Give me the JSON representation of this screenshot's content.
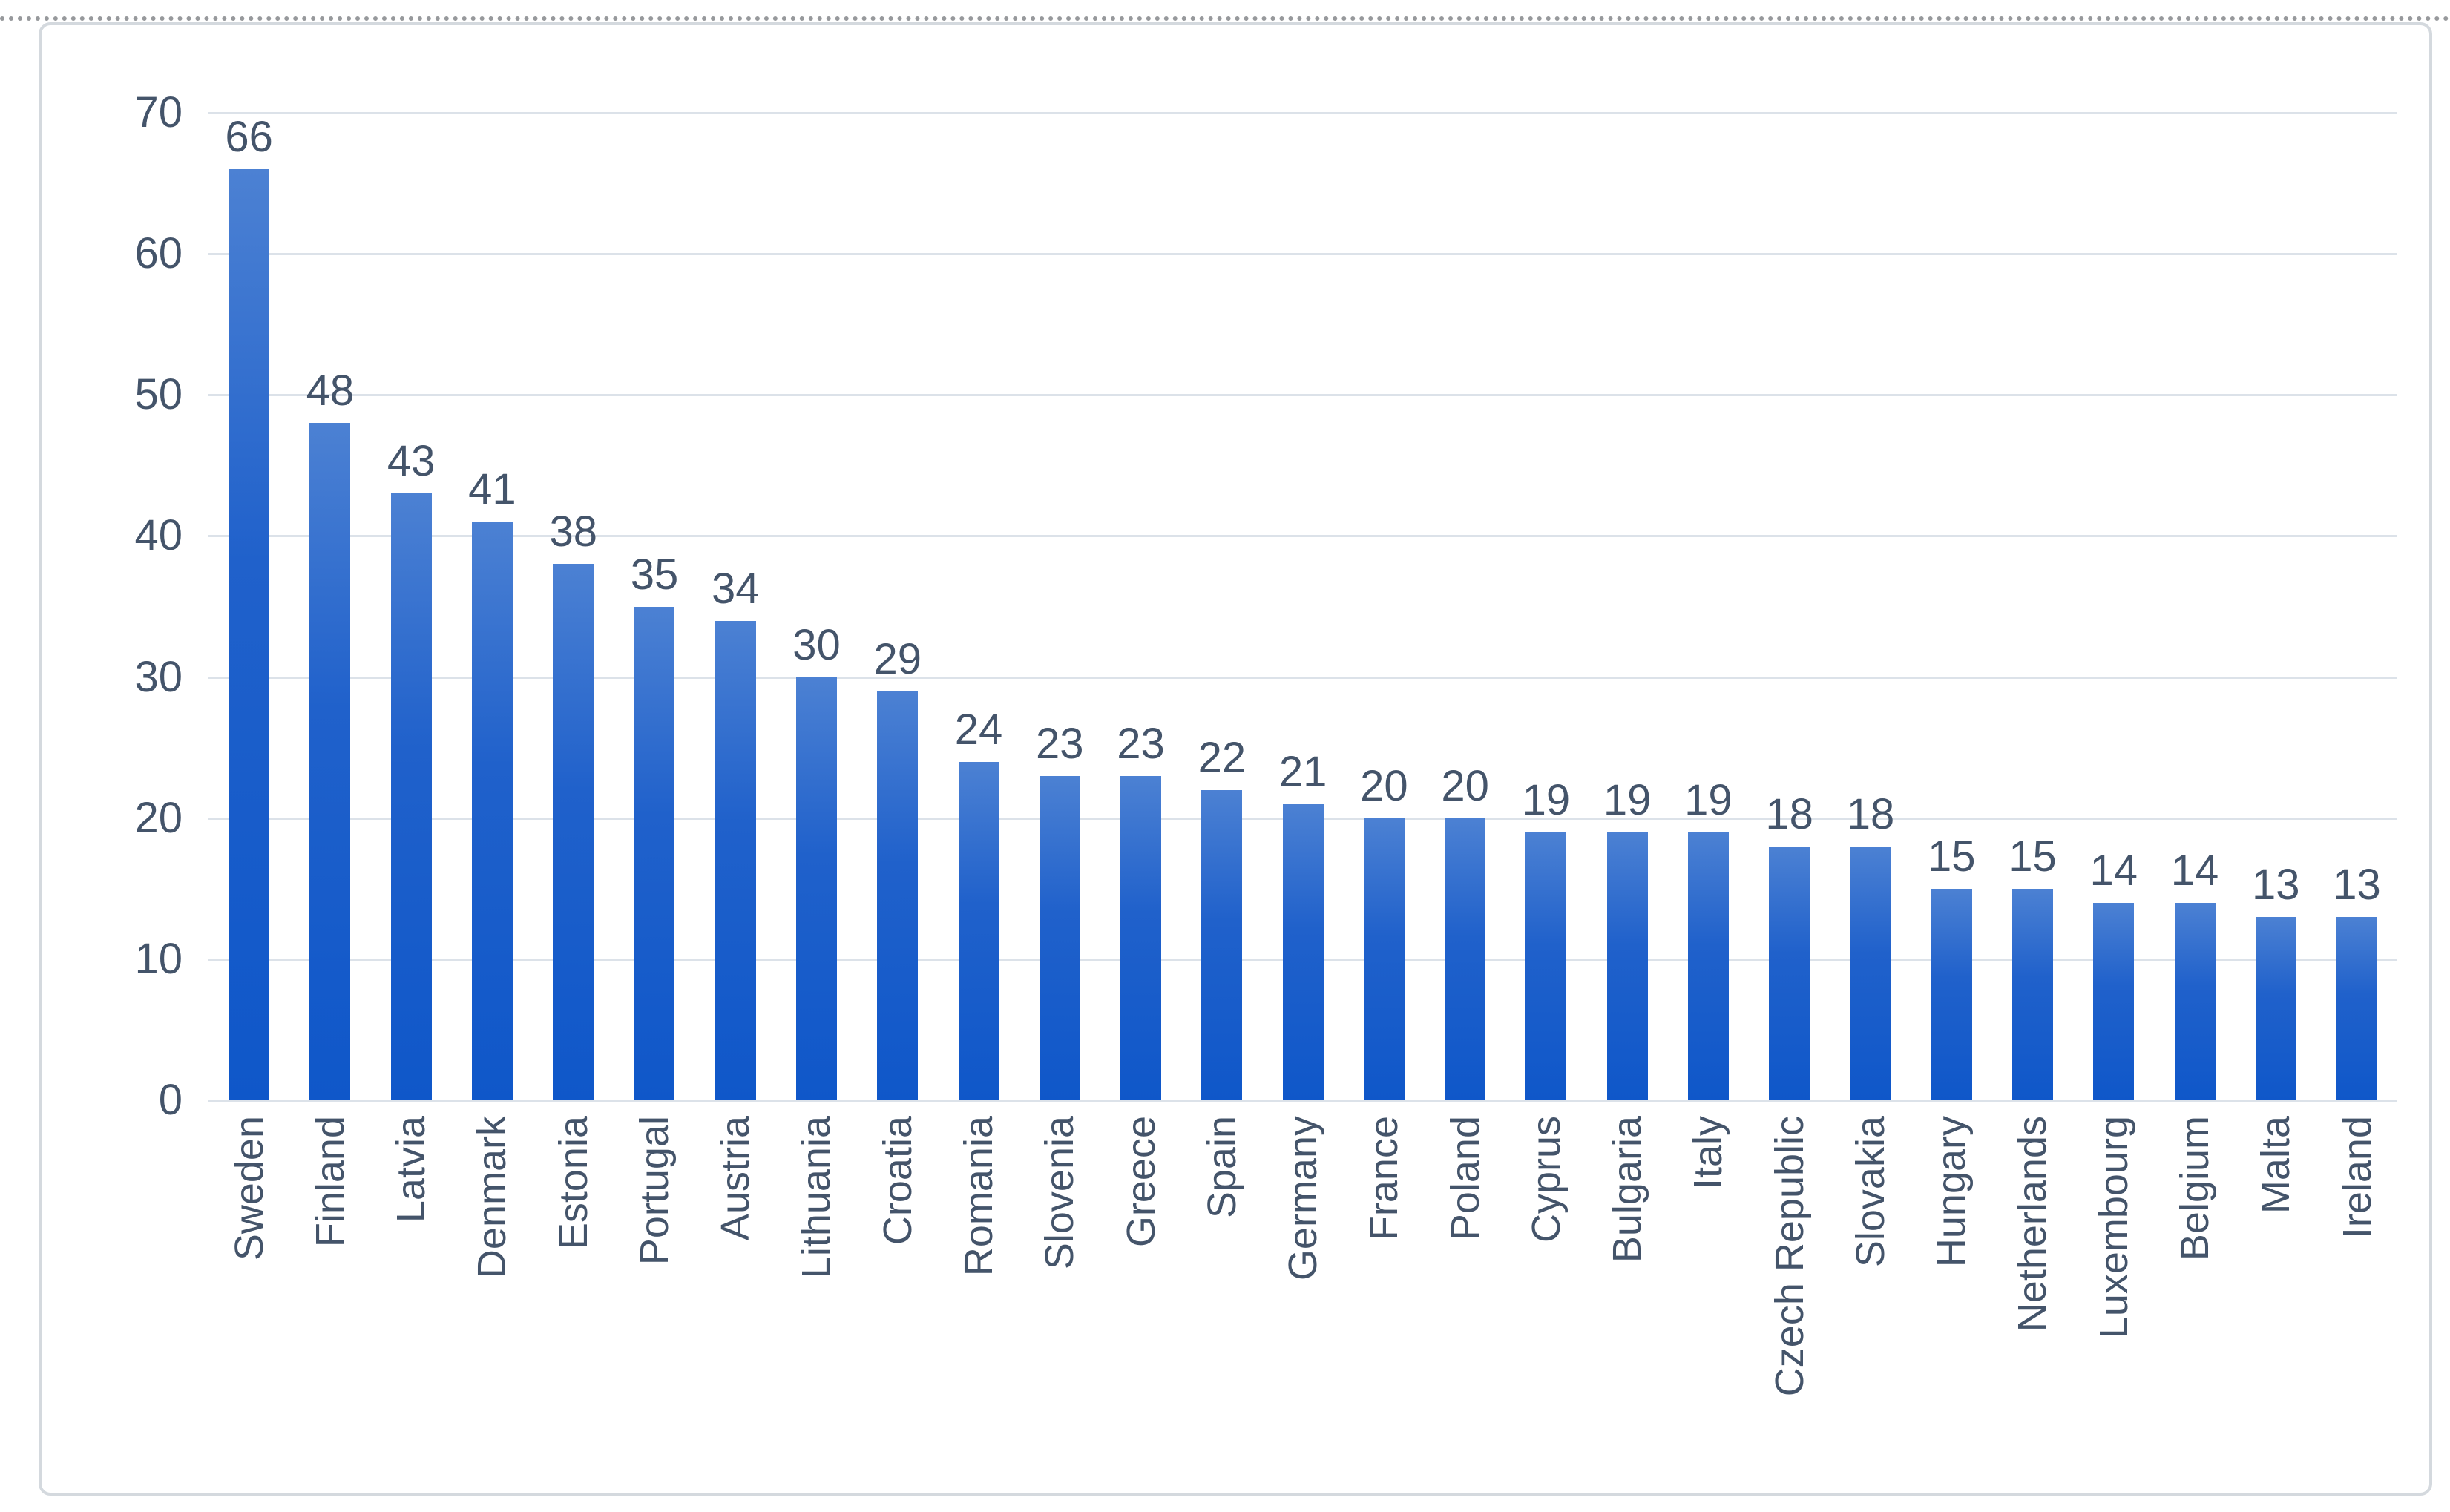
{
  "chart_data": {
    "type": "bar",
    "title": "",
    "xlabel": "",
    "ylabel": "",
    "categories": [
      "Sweden",
      "Finland",
      "Latvia",
      "Denmark",
      "Estonia",
      "Portugal",
      "Austria",
      "Lithuania",
      "Croatia",
      "Romania",
      "Slovenia",
      "Greece",
      "Spain",
      "Germany",
      "France",
      "Poland",
      "Cyprus",
      "Bulgaria",
      "Italy",
      "Czech Republic",
      "Slovakia",
      "Hungary",
      "Netherlands",
      "Luxembourg",
      "Belgium",
      "Malta",
      "Ireland"
    ],
    "values": [
      66,
      48,
      43,
      41,
      38,
      35,
      34,
      30,
      29,
      24,
      23,
      23,
      22,
      21,
      20,
      20,
      19,
      19,
      19,
      18,
      18,
      15,
      15,
      14,
      14,
      13,
      13
    ],
    "y_ticks": [
      0,
      10,
      20,
      30,
      40,
      50,
      60,
      70
    ],
    "ylim": [
      0,
      70
    ],
    "grid": true,
    "legend": "none",
    "data_labels": "outside-end",
    "x_label_rotation_degrees": 90
  },
  "colors": {
    "bar_gradient_top": "#4c81d3",
    "bar_gradient_mid": "#2061cb",
    "bar_gradient_bottom": "#0f57c9",
    "text": "#44546A",
    "gridline": "#dce2e9",
    "frame_border": "#d4d9de",
    "dotted_line": "#97999c",
    "background": "#ffffff"
  }
}
